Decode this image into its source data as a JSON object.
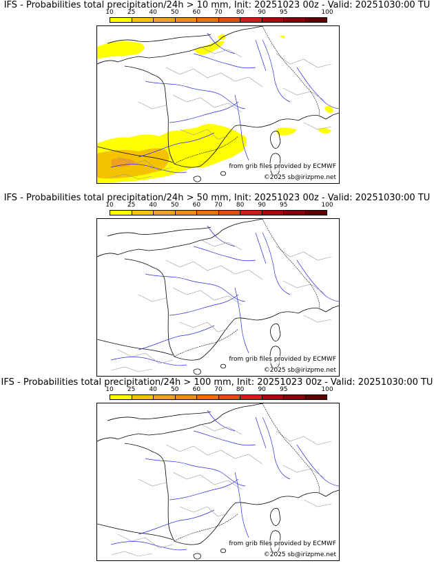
{
  "colorbar": {
    "ticks": [
      "10",
      "25",
      "40",
      "50",
      "60",
      "70",
      "80",
      "90",
      "95",
      "100"
    ],
    "colors": [
      "#ffff00",
      "#f5c200",
      "#f0a020",
      "#f08c10",
      "#ee7000",
      "#e84a10",
      "#d81818",
      "#b00010",
      "#880008",
      "#600000"
    ]
  },
  "panels": [
    {
      "title": "IFS - Probabilities total precipitation/24h > 10 mm, Init: 20251023 00z - Valid: 20251030:00 TU",
      "credit_source": "from grib files provided by ECMWF",
      "credit_copyright": "©2025 sb@irizpme.net"
    },
    {
      "title": "IFS - Probabilities total precipitation/24h > 50 mm, Init: 20251023 00z - Valid: 20251030:00 TU",
      "credit_source": "from grib files provided by ECMWF",
      "credit_copyright": "©2025 sb@irizpme.net"
    },
    {
      "title": "IFS - Probabilities total precipitation/24h > 100 mm, Init: 20251023 00z - Valid: 20251030:00 TU",
      "credit_source": "from grib files provided by ECMWF",
      "credit_copyright": "©2025 sb@irizpme.net"
    }
  ]
}
